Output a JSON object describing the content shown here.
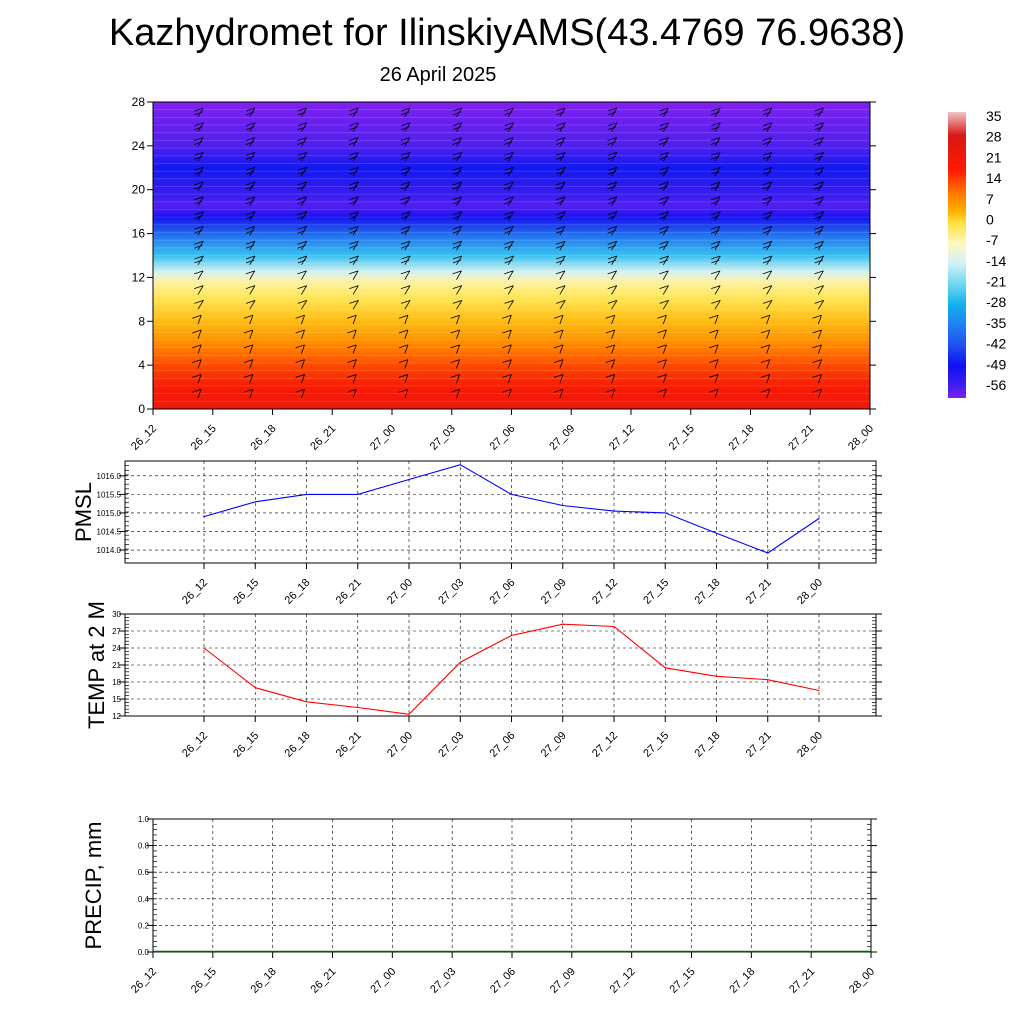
{
  "page": {
    "title": "Kazhydromet for IlinskiyAMS(43.4769 76.9638)",
    "subtitle": "26 April 2025"
  },
  "chart_data": [
    {
      "type": "heatmap",
      "name": "temperature-wind-cross-section",
      "x_ticks": [
        "26_12",
        "26_15",
        "26_18",
        "26_21",
        "27_00",
        "27_03",
        "27_06",
        "27_09",
        "27_12",
        "27_15",
        "27_18",
        "27_21",
        "28_00"
      ],
      "y_ticks": [
        0,
        4,
        8,
        12,
        16,
        20,
        24,
        28
      ],
      "ylim": [
        0,
        28
      ],
      "colorbar": {
        "labels": [
          35,
          28,
          21,
          14,
          7,
          0,
          -7,
          -14,
          -21,
          -28,
          -35,
          -42,
          -49,
          -56
        ],
        "range": [
          -60,
          38
        ],
        "stops": [
          {
            "v": 38,
            "c": "#f2c4c4"
          },
          {
            "v": 30,
            "c": "#d81818"
          },
          {
            "v": 18,
            "c": "#ff1a00"
          },
          {
            "v": 10,
            "c": "#ff7a00"
          },
          {
            "v": 4,
            "c": "#ffb000"
          },
          {
            "v": 0,
            "c": "#ffe040"
          },
          {
            "v": -7,
            "c": "#fff8c0"
          },
          {
            "v": -14,
            "c": "#d0f0f8"
          },
          {
            "v": -21,
            "c": "#70d8f0"
          },
          {
            "v": -28,
            "c": "#10b0f0"
          },
          {
            "v": -35,
            "c": "#2080f0"
          },
          {
            "v": -42,
            "c": "#2050f0"
          },
          {
            "v": -49,
            "c": "#1010f0"
          },
          {
            "v": -56,
            "c": "#4020f0"
          },
          {
            "v": -60,
            "c": "#8020f0"
          }
        ]
      },
      "profile_levels": [
        0,
        2,
        4,
        6,
        8,
        10,
        11.5,
        12.5,
        14,
        16,
        17.5,
        18.5,
        20,
        22,
        24,
        28
      ],
      "profile_temps": [
        24,
        20,
        14,
        8,
        3,
        -1,
        -5,
        -13,
        -25,
        -38,
        -50,
        -57,
        -54,
        -48,
        -57,
        -60
      ]
    },
    {
      "type": "line",
      "name": "pmsl",
      "ylabel": "PMSL",
      "x": [
        "26_12",
        "26_15",
        "26_18",
        "26_21",
        "27_00",
        "27_03",
        "27_06",
        "27_09",
        "27_12",
        "27_15",
        "27_18",
        "27_21",
        "28_00"
      ],
      "values": [
        1014.9,
        1015.3,
        1015.5,
        1015.5,
        1015.9,
        1016.3,
        1015.5,
        1015.2,
        1015.05,
        1015.0,
        1014.45,
        1013.92,
        1014.85
      ],
      "ylim": [
        1013.65,
        1016.4
      ],
      "y_ticks": [
        "1014.0",
        "1014.5",
        "1015.0",
        "1015.5",
        "1016.0"
      ],
      "color": "#0000ff"
    },
    {
      "type": "line",
      "name": "temp-2m",
      "ylabel": "TEMP at 2 M",
      "x": [
        "26_12",
        "26_15",
        "26_18",
        "26_21",
        "27_00",
        "27_03",
        "27_06",
        "27_09",
        "27_12",
        "27_15",
        "27_18",
        "27_21",
        "28_00"
      ],
      "values": [
        24,
        17,
        14.5,
        13.5,
        12.3,
        21.5,
        26.2,
        28.2,
        27.8,
        20.5,
        19.0,
        18.4,
        16.5
      ],
      "ylim": [
        12,
        30
      ],
      "y_ticks": [
        "12",
        "15",
        "18",
        "21",
        "24",
        "27",
        "30"
      ],
      "color": "#ff0000"
    },
    {
      "type": "bar",
      "name": "precip",
      "ylabel": "PRECIP, mm",
      "x": [
        "26_12",
        "26_15",
        "26_18",
        "26_21",
        "27_00",
        "27_03",
        "27_06",
        "27_09",
        "27_12",
        "27_15",
        "27_18",
        "27_21",
        "28_00"
      ],
      "values": [
        0,
        0,
        0,
        0,
        0,
        0,
        0,
        0,
        0,
        0,
        0,
        0,
        0
      ],
      "ylim": [
        0,
        1.0
      ],
      "y_ticks": [
        "0.0",
        "0.2",
        "0.4",
        "0.6",
        "0.8",
        "1.0"
      ],
      "color": "#006400"
    }
  ]
}
